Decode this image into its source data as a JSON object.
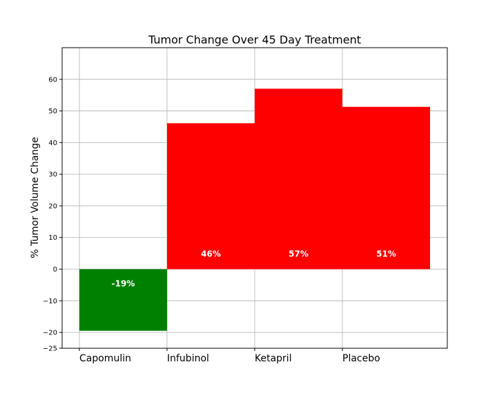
{
  "chart_data": {
    "type": "bar",
    "title": "Tumor Change Over 45 Day Treatment",
    "xlabel": "",
    "ylabel": "% Tumor Volume Change",
    "categories": [
      "Capomulin",
      "Infubinol",
      "Ketapril",
      "Placebo"
    ],
    "values": [
      -19.48,
      46.12,
      57.03,
      51.3
    ],
    "data_labels": [
      "-19%",
      "46%",
      "57%",
      "51%"
    ],
    "bar_colors": [
      "#008000",
      "#ff0000",
      "#ff0000",
      "#ff0000"
    ],
    "ylim": [
      -25,
      70
    ],
    "yticks": [
      -25,
      -20,
      -10,
      0,
      10,
      20,
      30,
      40,
      50,
      60
    ],
    "ytick_labels": [
      "−25",
      "−20",
      "−10",
      "0",
      "10",
      "20",
      "30",
      "40",
      "50",
      "60"
    ],
    "grid": true,
    "legend": "none"
  }
}
